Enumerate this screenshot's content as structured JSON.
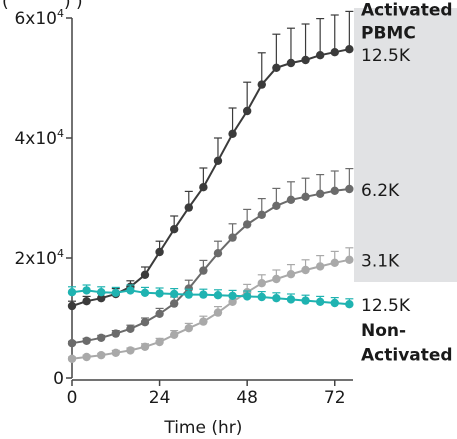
{
  "chart_data": {
    "type": "line",
    "title": "",
    "xlabel": "Time (hr)",
    "ylabel_fragment": "(",
    "ylabel_fragment_2": ") )",
    "xlim": [
      0,
      77
    ],
    "ylim": [
      0,
      60000
    ],
    "x_ticks": [
      0,
      24,
      48,
      72
    ],
    "x_tick_labels": [
      "0",
      "24",
      "48",
      "72"
    ],
    "y_ticks": [
      0,
      20000,
      40000,
      60000
    ],
    "y_tick_labels": [
      {
        "base": "0",
        "exp": ""
      },
      {
        "base": "2x10",
        "exp": "4"
      },
      {
        "base": "4x10",
        "exp": "4"
      },
      {
        "base": "6x10",
        "exp": "4"
      }
    ],
    "grid": false,
    "x": [
      0,
      4,
      8,
      12,
      16,
      20,
      24,
      28,
      32,
      36,
      40,
      44,
      48,
      52,
      56,
      60,
      64,
      68,
      72,
      76
    ],
    "series": [
      {
        "id": "activated_12_5k",
        "color": "#3b3b3b",
        "values": [
          12000,
          12800,
          13300,
          14000,
          15200,
          17200,
          21000,
          24800,
          28400,
          31800,
          36200,
          40700,
          44500,
          48900,
          51700,
          52500,
          53000,
          53800,
          54300,
          54800
        ],
        "errors": [
          800,
          800,
          800,
          900,
          1000,
          1300,
          1800,
          2200,
          2700,
          3200,
          3800,
          4300,
          4800,
          5300,
          5600,
          5800,
          6000,
          6100,
          6200,
          6300
        ]
      },
      {
        "id": "activated_6_2k",
        "color": "#6b6b6b",
        "values": [
          5800,
          6200,
          6700,
          7400,
          8200,
          9300,
          10700,
          12400,
          14900,
          17900,
          20800,
          23400,
          25600,
          27200,
          28700,
          29700,
          30200,
          30700,
          31200,
          31500
        ],
        "errors": [
          300,
          400,
          400,
          500,
          600,
          700,
          900,
          1100,
          1400,
          1700,
          2000,
          2300,
          2500,
          2700,
          2900,
          3000,
          3100,
          3200,
          3300,
          3400
        ]
      },
      {
        "id": "activated_3_1k",
        "color": "#a9a9a9",
        "values": [
          3200,
          3500,
          3800,
          4200,
          4600,
          5200,
          6000,
          7200,
          8300,
          9400,
          10900,
          12700,
          14300,
          15800,
          16500,
          17300,
          18000,
          18600,
          19200,
          19700
        ],
        "errors": [
          300,
          300,
          300,
          400,
          400,
          500,
          600,
          700,
          800,
          900,
          1000,
          1200,
          1300,
          1400,
          1500,
          1600,
          1700,
          1800,
          1900,
          2000
        ]
      },
      {
        "id": "non_activated_12_5k",
        "color": "#1fb3b1",
        "values": [
          14300,
          14600,
          14300,
          14200,
          14600,
          14200,
          14100,
          14000,
          13900,
          13900,
          13800,
          13700,
          13600,
          13500,
          13300,
          13100,
          12900,
          12700,
          12500,
          12300
        ],
        "errors": [
          900,
          900,
          900,
          900,
          900,
          900,
          900,
          900,
          900,
          900,
          900,
          900,
          900,
          900,
          900,
          900,
          900,
          900,
          900,
          900
        ]
      }
    ],
    "activated_region": {
      "y_from": 16000,
      "y_to": 60000,
      "color": "#e1e2e4"
    },
    "annotations": [
      {
        "id": "activated-heading",
        "text": "Activated",
        "bold": true,
        "y_value": 61400
      },
      {
        "id": "pbmc-heading",
        "text": "PBMC",
        "bold": true,
        "y_value": 57600
      },
      {
        "id": "label-12-5k-activated",
        "text": "12.5K",
        "bold": false,
        "y_value": 53800
      },
      {
        "id": "label-6-2k",
        "text": "6.2K",
        "bold": false,
        "y_value": 31300
      },
      {
        "id": "label-3-1k",
        "text": "3.1K",
        "bold": false,
        "y_value": 19600
      },
      {
        "id": "label-12-5k-non",
        "text": "12.5K",
        "bold": false,
        "y_value": 12200
      },
      {
        "id": "non-heading",
        "text": "Non-",
        "bold": true,
        "y_value": 8000
      },
      {
        "id": "activated-sub-heading",
        "text": "Activated",
        "bold": true,
        "y_value": 3900
      }
    ]
  }
}
